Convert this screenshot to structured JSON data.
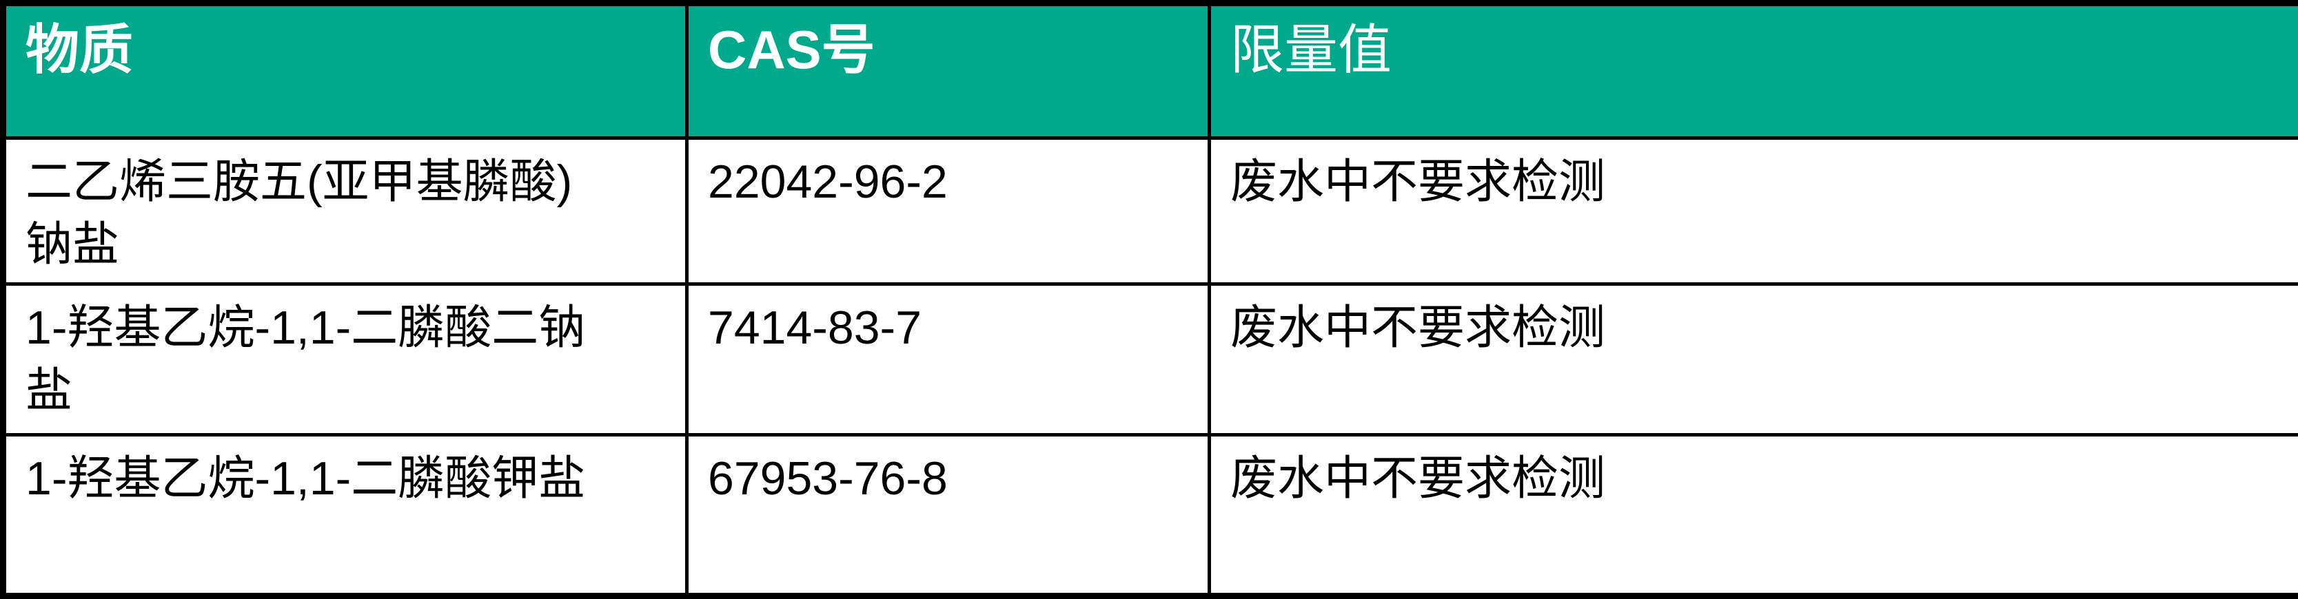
{
  "table": {
    "columns": [
      {
        "label": "物质"
      },
      {
        "label": "CAS号"
      },
      {
        "label": "限量值"
      }
    ],
    "rows": [
      {
        "substance": "二乙烯三胺五(亚甲基膦酸)钠盐",
        "substance_lines": [
          "二乙烯三胺五(亚甲基膦酸)",
          "钠盐"
        ],
        "cas": "22042-96-2",
        "limit": "废水中不要求检测"
      },
      {
        "substance": "1-羟基乙烷-1,1-二膦酸二钠盐",
        "substance_lines": [
          "1-羟基乙烷-1,1-二膦酸二钠",
          "盐"
        ],
        "cas": "7414-83-7",
        "limit": "废水中不要求检测"
      },
      {
        "substance": "1-羟基乙烷-1,1-二膦酸钾盐",
        "substance_lines": [
          "1-羟基乙烷-1,1-二膦酸钾盐"
        ],
        "cas": "67953-76-8",
        "limit": "废水中不要求检测"
      }
    ]
  },
  "colors": {
    "header_bg": "#00A88C",
    "header_text": "#FFFFFF",
    "border": "#000000",
    "body_text": "#000000",
    "row_bg": "#FFFFFF"
  }
}
